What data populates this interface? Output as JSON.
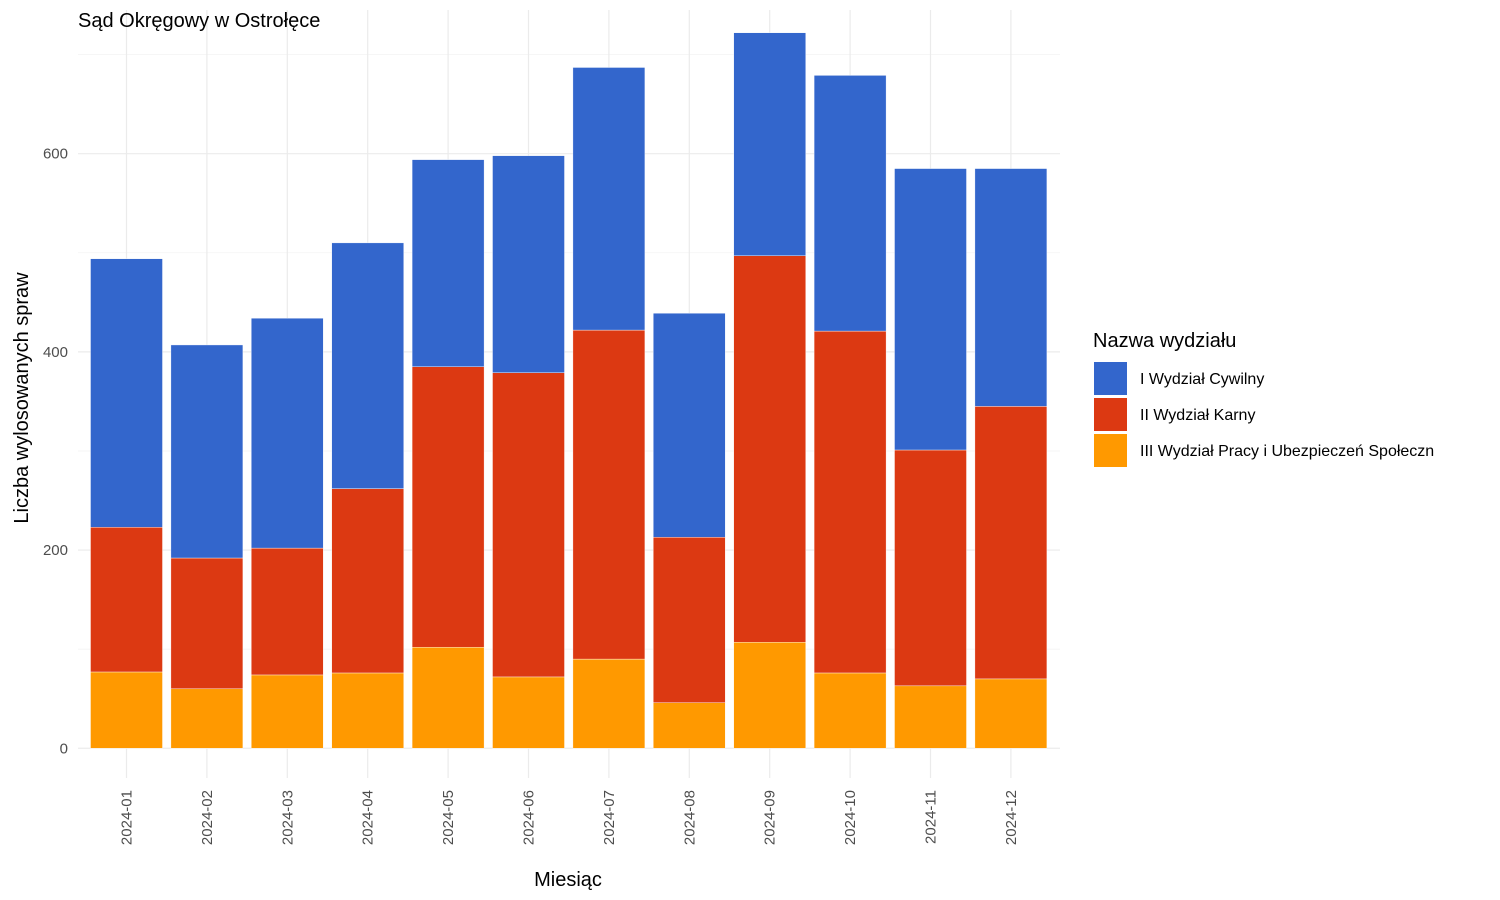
{
  "chart_data": {
    "type": "bar",
    "stacked": true,
    "title": "Sąd Okręgowy w Ostrołęce",
    "xlabel": "Miesiąc",
    "ylabel": "Liczba wylosowanych spraw",
    "categories": [
      "2024-01",
      "2024-02",
      "2024-03",
      "2024-04",
      "2024-05",
      "2024-06",
      "2024-07",
      "2024-08",
      "2024-09",
      "2024-10",
      "2024-11",
      "2024-12"
    ],
    "ylim": [
      -30,
      745
    ],
    "yticks": [
      0,
      200,
      400,
      600
    ],
    "grid": true,
    "legend": {
      "title": "Nazwa wydziału",
      "position": "right"
    },
    "series": [
      {
        "name": "III Wydział Pracy i Ubezpieczeń Społeczn",
        "color": "#FF9900",
        "values": [
          77,
          60,
          74,
          76,
          102,
          72,
          90,
          46,
          107,
          76,
          63,
          70
        ]
      },
      {
        "name": "II Wydział Karny",
        "color": "#DC3912",
        "values": [
          146,
          132,
          128,
          186,
          283,
          307,
          332,
          167,
          390,
          345,
          238,
          275
        ]
      },
      {
        "name": "I Wydział Cywilny",
        "color": "#3366CC",
        "values": [
          271,
          215,
          232,
          248,
          209,
          219,
          265,
          226,
          225,
          258,
          284,
          240
        ]
      }
    ]
  }
}
